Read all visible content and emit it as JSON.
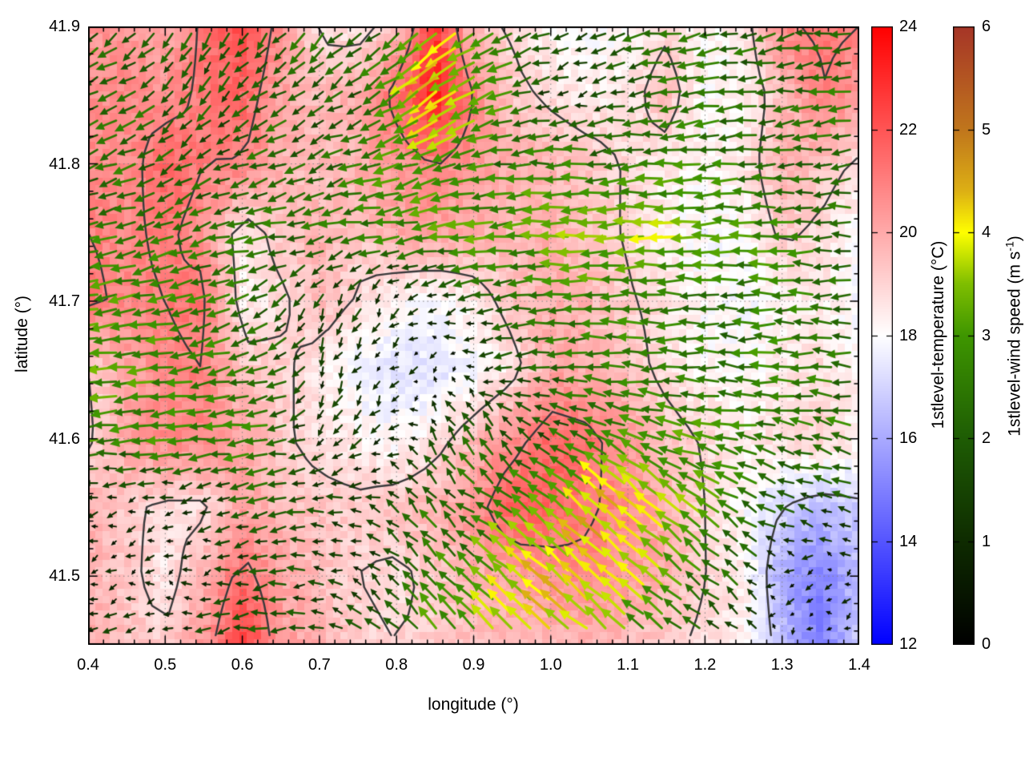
{
  "axes": {
    "xlabel": "longitude (°)",
    "ylabel": "latitude (°)",
    "x_tick_labels": [
      "0.4",
      "0.5",
      "0.6",
      "0.7",
      "0.8",
      "0.9",
      "1.0",
      "1.1",
      "1.2",
      "1.3",
      "1.4"
    ],
    "y_tick_labels": [
      "41.9",
      "41.8",
      "41.7",
      "41.6",
      "41.5"
    ]
  },
  "temp_colorbar": {
    "label": "1stlevel-temperature (°C)",
    "ticks": [
      "24",
      "22",
      "20",
      "18",
      "16",
      "14",
      "12"
    ],
    "range": [
      12,
      24
    ],
    "colormap": [
      [
        12,
        "#0000ff"
      ],
      [
        18,
        "#ffffff"
      ],
      [
        24,
        "#ff0000"
      ]
    ]
  },
  "wind_colorbar": {
    "label_pre": "1stlevel-wind speed (m s",
    "label_sup": "-1",
    "label_post": ")",
    "ticks": [
      "6",
      "5",
      "4",
      "3",
      "2",
      "1",
      "0"
    ],
    "range": [
      0,
      6
    ],
    "colormap": [
      [
        0,
        "#000000"
      ],
      [
        1,
        "#0e2b00"
      ],
      [
        2,
        "#1e5c04"
      ],
      [
        3,
        "#3e9600"
      ],
      [
        3.5,
        "#7fbe00"
      ],
      [
        4,
        "#ffff00"
      ],
      [
        4.4,
        "#ddb014"
      ],
      [
        5,
        "#c0761c"
      ],
      [
        6,
        "#a63527"
      ]
    ]
  },
  "chart_data": {
    "type": "heatmap",
    "overlay": "quiver",
    "title": "",
    "xlabel": "longitude (°)",
    "ylabel": "latitude (°)",
    "lon_range": [
      0.4,
      1.4
    ],
    "lat_range": [
      41.45,
      41.9
    ],
    "grid": {
      "ncols": 21,
      "nrows": 10,
      "lon_step": 0.05,
      "lat_step": 0.05,
      "row_order": "north_to_south"
    },
    "contour_levels": [
      17,
      19,
      21
    ],
    "contour_color": "#3a3a3c",
    "grid_line_color": "#828282",
    "temperature_c": [
      [
        20.5,
        20.4,
        20.0,
        21.2,
        22.3,
        20.6,
        18.8,
        18.6,
        19.5,
        22.8,
        19.5,
        18.8,
        18.2,
        17.9,
        18.2,
        18.8,
        18.2,
        18.5,
        20.8,
        21.2,
        21.0
      ],
      [
        20.5,
        20.8,
        20.6,
        21.2,
        21.6,
        20.2,
        19.6,
        19.9,
        21.4,
        23.4,
        21.0,
        19.3,
        18.8,
        18.4,
        18.6,
        19.6,
        18.0,
        18.3,
        19.5,
        21.0,
        20.5
      ],
      [
        20.8,
        20.6,
        21.6,
        21.0,
        21.0,
        19.8,
        19.5,
        19.9,
        20.4,
        21.0,
        20.4,
        19.9,
        19.7,
        19.4,
        18.9,
        18.5,
        18.2,
        18.5,
        19.8,
        19.5,
        18.8
      ],
      [
        21.0,
        20.8,
        21.2,
        20.6,
        18.4,
        19.4,
        19.8,
        19.3,
        20.0,
        20.2,
        19.9,
        19.7,
        19.9,
        19.4,
        18.9,
        18.3,
        17.9,
        18.2,
        19.2,
        18.8,
        18.0
      ],
      [
        21.2,
        20.8,
        21.0,
        21.3,
        18.4,
        18.8,
        19.6,
        18.9,
        18.3,
        18.0,
        18.5,
        19.4,
        19.9,
        19.7,
        19.1,
        18.7,
        18.1,
        17.9,
        18.2,
        18.5,
        17.8
      ],
      [
        19.0,
        20.0,
        20.8,
        21.0,
        19.4,
        19.2,
        18.6,
        17.6,
        17.3,
        17.3,
        17.8,
        18.6,
        20.1,
        19.9,
        19.4,
        18.7,
        18.2,
        18.0,
        18.5,
        18.8,
        18.2
      ],
      [
        18.8,
        20.2,
        20.8,
        20.8,
        20.2,
        19.2,
        18.6,
        18.4,
        18.0,
        18.6,
        19.6,
        20.6,
        21.6,
        21.3,
        20.4,
        19.4,
        18.9,
        18.4,
        18.8,
        19.0,
        18.4
      ],
      [
        20.0,
        19.2,
        18.8,
        18.8,
        20.2,
        19.6,
        19.4,
        19.2,
        19.5,
        19.8,
        20.5,
        21.9,
        21.7,
        21.1,
        20.7,
        19.9,
        19.0,
        18.1,
        17.0,
        16.5,
        16.8
      ],
      [
        19.8,
        19.3,
        18.5,
        19.8,
        21.4,
        20.2,
        19.5,
        19.0,
        18.8,
        19.2,
        19.8,
        20.2,
        20.5,
        20.8,
        20.4,
        19.8,
        19.0,
        18.4,
        16.0,
        15.0,
        16.5
      ],
      [
        20.0,
        19.5,
        19.2,
        20.4,
        22.7,
        20.4,
        19.8,
        19.2,
        19.0,
        19.2,
        19.5,
        19.8,
        19.5,
        19.8,
        19.5,
        19.2,
        18.8,
        18.4,
        16.5,
        14.8,
        17.0
      ]
    ],
    "wind_u_ms": [
      [
        -1.5,
        -1.8,
        -1.2,
        -0.8,
        -1.0,
        -1.5,
        -1.2,
        -1.5,
        -2.0,
        -3.2,
        -3.0,
        -2.2,
        -1.8,
        -1.5,
        -1.8,
        -2.2,
        -2.0,
        -2.2,
        -2.0,
        -1.8,
        -2.0
      ],
      [
        -1.8,
        -2.0,
        -1.6,
        -1.1,
        -1.3,
        -1.8,
        -1.5,
        -1.8,
        -2.5,
        -3.4,
        -3.1,
        -2.7,
        -1.5,
        -1.2,
        -1.6,
        -2.2,
        -2.5,
        -2.2,
        -2.0,
        -2.2,
        -2.5
      ],
      [
        -2.0,
        -2.2,
        -1.8,
        -1.6,
        -1.8,
        -2.0,
        -1.8,
        -2.2,
        -2.8,
        -3.0,
        -2.8,
        -2.4,
        -2.6,
        -2.5,
        -2.2,
        -2.5,
        -2.8,
        -2.5,
        -2.2,
        -2.0,
        -2.4
      ],
      [
        -2.4,
        -2.6,
        -2.4,
        -2.2,
        -2.3,
        -2.5,
        -2.2,
        -2.4,
        -2.7,
        -2.9,
        -3.1,
        -3.0,
        -3.2,
        -3.5,
        -3.7,
        -3.7,
        -3.4,
        -3.0,
        -2.8,
        -2.5,
        -2.2
      ],
      [
        -3.0,
        -2.8,
        -2.8,
        -2.5,
        -2.2,
        -1.6,
        -0.6,
        -0.6,
        -0.5,
        -0.8,
        -1.4,
        -2.0,
        -2.4,
        -2.7,
        -2.5,
        -2.7,
        -2.5,
        -2.2,
        -2.6,
        -2.4,
        -2.2
      ],
      [
        -3.2,
        -3.0,
        -2.8,
        -2.6,
        -2.4,
        -2.0,
        -0.5,
        -0.6,
        -0.5,
        -0.4,
        -0.6,
        -1.6,
        -2.1,
        -2.4,
        -2.7,
        -2.5,
        -2.2,
        -2.5,
        -2.8,
        -2.6,
        -2.3
      ],
      [
        -2.8,
        -2.6,
        -2.8,
        -2.6,
        -2.8,
        -2.5,
        -1.0,
        -0.8,
        -0.6,
        -0.6,
        -1.0,
        -1.3,
        -1.6,
        -2.0,
        -2.4,
        -2.8,
        -3.0,
        -2.8,
        -2.5,
        -2.2,
        -2.5
      ],
      [
        -0.8,
        -0.7,
        -0.6,
        -0.8,
        -1.6,
        -1.9,
        -1.7,
        -1.4,
        -1.2,
        -1.4,
        -1.8,
        -2.2,
        -2.6,
        -3.0,
        -3.1,
        -2.9,
        -2.6,
        -2.2,
        -1.8,
        -1.4,
        -1.6
      ],
      [
        -1.0,
        -0.7,
        -0.5,
        -0.9,
        -1.4,
        -1.7,
        -1.4,
        -1.1,
        -1.3,
        -1.6,
        -2.0,
        -2.6,
        -2.9,
        -3.1,
        -2.9,
        -2.5,
        -2.0,
        -1.5,
        -0.6,
        -0.3,
        -0.5
      ],
      [
        -1.4,
        -1.1,
        -0.8,
        -1.4,
        -1.9,
        -2.1,
        -1.8,
        -1.4,
        -1.6,
        -1.9,
        -2.3,
        -2.8,
        -3.0,
        -2.7,
        -2.4,
        -1.9,
        -1.4,
        -1.1,
        -0.4,
        -0.3,
        -0.7
      ]
    ],
    "wind_v_ms": [
      [
        -1.5,
        -1.2,
        -1.5,
        -1.8,
        -1.5,
        -1.5,
        -1.8,
        -1.2,
        -1.5,
        -2.5,
        -1.8,
        -1.0,
        -0.5,
        -0.3,
        -0.5,
        -0.3,
        -0.5,
        -0.3,
        -0.5,
        -0.3,
        -0.5
      ],
      [
        -1.2,
        -1.0,
        -1.2,
        -1.5,
        -1.2,
        -1.0,
        -1.2,
        -0.8,
        -1.5,
        -2.3,
        -1.6,
        -0.8,
        -0.5,
        -0.3,
        -0.3,
        -0.3,
        -0.5,
        -0.3,
        -0.3,
        -0.2,
        -0.3
      ],
      [
        -0.9,
        -0.7,
        -0.9,
        -1.0,
        -0.8,
        -0.6,
        -0.8,
        -0.5,
        -0.8,
        -1.0,
        -0.5,
        -0.3,
        -0.2,
        -0.2,
        -0.2,
        -0.2,
        -0.3,
        -0.2,
        -0.2,
        -0.2,
        -0.2
      ],
      [
        -0.6,
        -0.5,
        -0.8,
        -0.8,
        -0.5,
        -0.4,
        -0.5,
        -0.3,
        -0.3,
        -0.5,
        -0.3,
        -0.2,
        -0.2,
        0,
        -0.2,
        0,
        -0.2,
        0,
        0,
        0,
        0
      ],
      [
        -0.6,
        -0.4,
        -0.6,
        -0.6,
        -0.8,
        -1.2,
        -1.4,
        -1.3,
        -0.8,
        -0.4,
        -0.3,
        -0.2,
        0,
        0,
        0,
        0,
        0.2,
        0,
        0,
        0.2,
        0
      ],
      [
        -0.4,
        -0.3,
        -0.4,
        -0.5,
        -0.6,
        -0.8,
        -1.2,
        -1.0,
        -0.5,
        -0.2,
        0,
        -0.2,
        0,
        0.1,
        0.2,
        0,
        0,
        0.2,
        0,
        0,
        0.2
      ],
      [
        -0.3,
        -0.2,
        -0.3,
        -0.2,
        -0.3,
        -0.2,
        -0.8,
        -0.8,
        -0.2,
        1.2,
        1.8,
        1.2,
        0.8,
        1.0,
        1.2,
        1.0,
        0.7,
        0.4,
        0.5,
        0.8,
        0.5
      ],
      [
        -0.3,
        -0.2,
        -0.2,
        -0.3,
        -0.4,
        -0.3,
        -0.2,
        0.3,
        1.0,
        1.5,
        1.2,
        1.5,
        2.2,
        2.7,
        2.9,
        2.6,
        1.9,
        1.3,
        0.9,
        0.4,
        0.6
      ],
      [
        -0.2,
        -0.2,
        -0.1,
        -0.2,
        -0.3,
        -0.2,
        0.1,
        0.4,
        1.2,
        1.8,
        2.0,
        2.4,
        2.8,
        3.0,
        2.7,
        2.1,
        1.5,
        1.5,
        -0.2,
        -0.3,
        -0.2
      ],
      [
        -0.2,
        -0.1,
        -0.1,
        -0.2,
        -0.2,
        0,
        0.2,
        0.8,
        1.5,
        2.3,
        2.6,
        2.7,
        2.5,
        2.2,
        1.8,
        1.4,
        1.0,
        0.5,
        -0.2,
        -0.2,
        0
      ]
    ]
  }
}
